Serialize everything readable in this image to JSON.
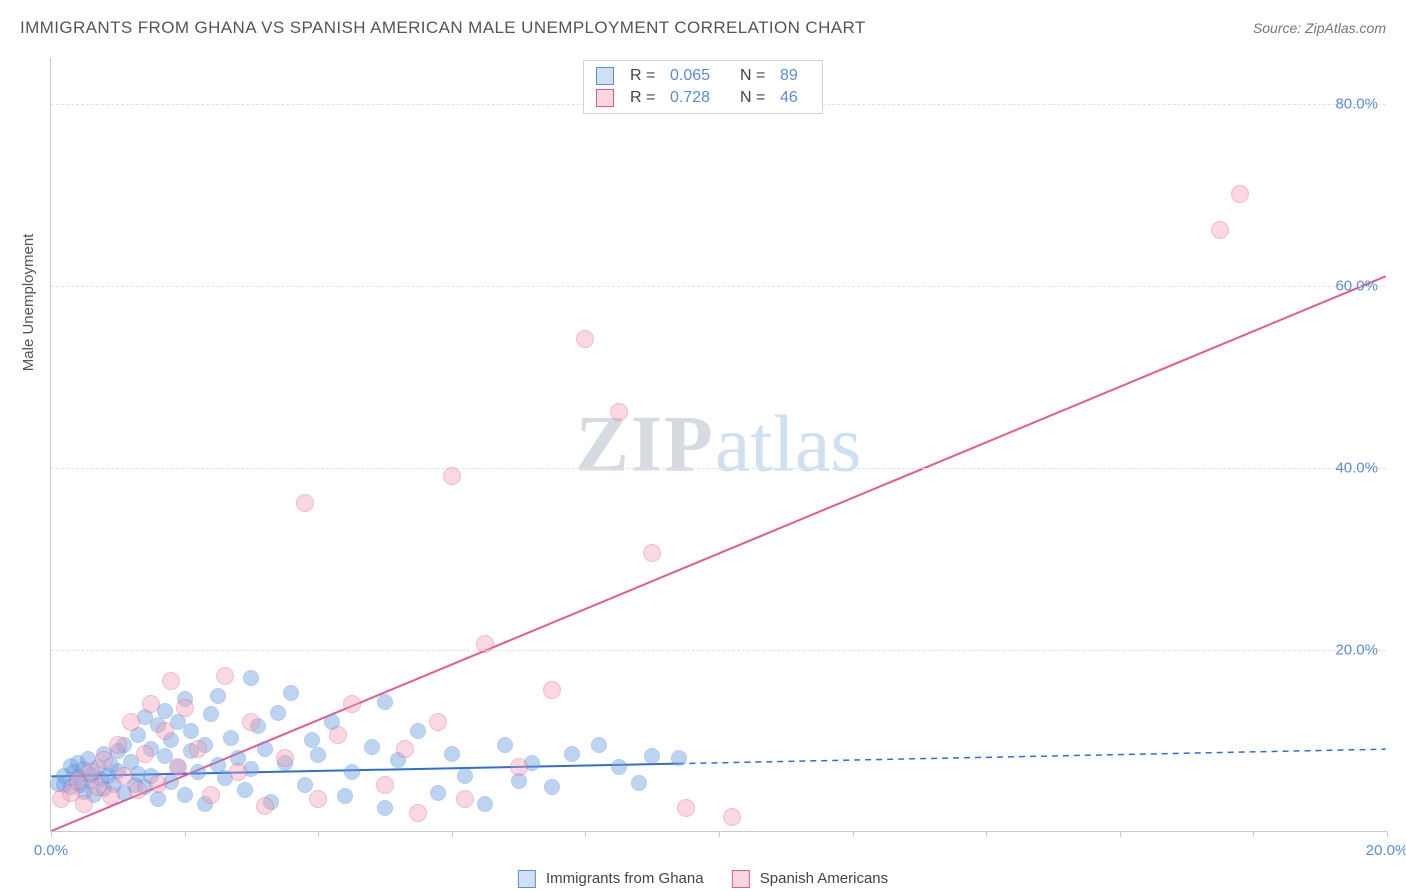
{
  "header": {
    "title": "IMMIGRANTS FROM GHANA VS SPANISH AMERICAN MALE UNEMPLOYMENT CORRELATION CHART",
    "source_prefix": "Source: ",
    "source": "ZipAtlas.com"
  },
  "watermark": {
    "zip": "ZIP",
    "atlas": "atlas"
  },
  "chart": {
    "type": "scatter",
    "y_axis_title": "Male Unemployment",
    "background_color": "#ffffff",
    "grid_color": "#e3e3e3",
    "axis_color": "#c9c9c9",
    "tick_label_color": "#5b8dd6",
    "tick_fontsize": 15,
    "x": {
      "min": 0.0,
      "max": 20.0,
      "ticks": [
        0.0,
        2.0,
        4.0,
        6.0,
        8.0,
        10.0,
        12.0,
        14.0,
        16.0,
        18.0,
        20.0
      ],
      "labels": [
        "0.0%",
        "",
        "",
        "",
        "",
        "",
        "",
        "",
        "",
        "",
        "20.0%"
      ]
    },
    "y": {
      "min": 0.0,
      "max": 85.0,
      "ticks": [
        20.0,
        40.0,
        60.0,
        80.0
      ],
      "labels": [
        "20.0%",
        "40.0%",
        "60.0%",
        "80.0%"
      ]
    },
    "series": [
      {
        "name": "Immigrants from Ghana",
        "label": "Immigrants from Ghana",
        "marker": "circle",
        "marker_radius_px": 8,
        "fill_color": "#6ea2df",
        "fill_opacity": 0.45,
        "stroke_color": "#5b8dd6",
        "stroke_width": 1.2,
        "trend": {
          "slope": 0.15,
          "intercept": 6.0,
          "x_solid_max": 9.4,
          "line_color": "#2f6fd0",
          "line_width": 2,
          "dash_color": "#2f6fd0"
        },
        "stats": {
          "R": "0.065",
          "N": "89"
        },
        "points": [
          [
            0.1,
            5.2
          ],
          [
            0.2,
            6.0
          ],
          [
            0.2,
            5.0
          ],
          [
            0.3,
            7.1
          ],
          [
            0.3,
            4.8
          ],
          [
            0.35,
            6.5
          ],
          [
            0.4,
            5.9
          ],
          [
            0.4,
            7.5
          ],
          [
            0.45,
            5.0
          ],
          [
            0.5,
            6.8
          ],
          [
            0.5,
            4.3
          ],
          [
            0.55,
            7.9
          ],
          [
            0.6,
            5.5
          ],
          [
            0.6,
            6.2
          ],
          [
            0.65,
            4.0
          ],
          [
            0.7,
            7.0
          ],
          [
            0.75,
            5.7
          ],
          [
            0.8,
            8.5
          ],
          [
            0.8,
            4.6
          ],
          [
            0.85,
            6.0
          ],
          [
            0.9,
            7.3
          ],
          [
            0.95,
            5.1
          ],
          [
            1.0,
            8.8
          ],
          [
            1.0,
            6.6
          ],
          [
            1.1,
            4.2
          ],
          [
            1.1,
            9.4
          ],
          [
            1.2,
            7.6
          ],
          [
            1.25,
            5.0
          ],
          [
            1.3,
            10.5
          ],
          [
            1.3,
            6.3
          ],
          [
            1.4,
            12.5
          ],
          [
            1.4,
            4.8
          ],
          [
            1.5,
            9.0
          ],
          [
            1.5,
            6.0
          ],
          [
            1.6,
            11.6
          ],
          [
            1.6,
            3.5
          ],
          [
            1.7,
            8.2
          ],
          [
            1.7,
            13.2
          ],
          [
            1.8,
            5.4
          ],
          [
            1.8,
            10.0
          ],
          [
            1.9,
            7.0
          ],
          [
            1.9,
            12.0
          ],
          [
            2.0,
            14.5
          ],
          [
            2.0,
            4.0
          ],
          [
            2.1,
            8.8
          ],
          [
            2.1,
            11.0
          ],
          [
            2.2,
            6.5
          ],
          [
            2.3,
            9.5
          ],
          [
            2.3,
            3.0
          ],
          [
            2.4,
            12.8
          ],
          [
            2.5,
            7.2
          ],
          [
            2.5,
            14.8
          ],
          [
            2.6,
            5.8
          ],
          [
            2.7,
            10.2
          ],
          [
            2.8,
            8.0
          ],
          [
            2.9,
            4.5
          ],
          [
            3.0,
            16.8
          ],
          [
            3.0,
            6.8
          ],
          [
            3.1,
            11.5
          ],
          [
            3.2,
            9.0
          ],
          [
            3.3,
            3.2
          ],
          [
            3.4,
            13.0
          ],
          [
            3.5,
            7.5
          ],
          [
            3.6,
            15.2
          ],
          [
            3.8,
            5.0
          ],
          [
            3.9,
            10.0
          ],
          [
            4.0,
            8.3
          ],
          [
            4.2,
            12.0
          ],
          [
            4.4,
            3.8
          ],
          [
            4.5,
            6.5
          ],
          [
            4.8,
            9.2
          ],
          [
            5.0,
            14.2
          ],
          [
            5.0,
            2.5
          ],
          [
            5.2,
            7.8
          ],
          [
            5.5,
            11.0
          ],
          [
            5.8,
            4.2
          ],
          [
            6.0,
            8.5
          ],
          [
            6.2,
            6.0
          ],
          [
            6.5,
            3.0
          ],
          [
            6.8,
            9.5
          ],
          [
            7.0,
            5.5
          ],
          [
            7.2,
            7.5
          ],
          [
            7.5,
            4.8
          ],
          [
            7.8,
            8.5
          ],
          [
            8.2,
            9.5
          ],
          [
            8.5,
            7.0
          ],
          [
            8.8,
            5.3
          ],
          [
            9.0,
            8.2
          ],
          [
            9.4,
            8.0
          ]
        ]
      },
      {
        "name": "Spanish Americans",
        "label": "Spanish Americans",
        "marker": "circle",
        "marker_radius_px": 9,
        "fill_color": "#f29fb8",
        "fill_opacity": 0.4,
        "stroke_color": "#e65a8a",
        "stroke_width": 1.2,
        "trend": {
          "slope": 3.05,
          "intercept": 0.0,
          "x_solid_max": 20.0,
          "line_color": "#e75a8f",
          "line_width": 2
        },
        "stats": {
          "R": "0.728",
          "N": "46"
        },
        "points": [
          [
            0.15,
            3.5
          ],
          [
            0.3,
            4.2
          ],
          [
            0.4,
            5.5
          ],
          [
            0.5,
            3.0
          ],
          [
            0.6,
            6.5
          ],
          [
            0.7,
            4.8
          ],
          [
            0.8,
            7.8
          ],
          [
            0.9,
            3.8
          ],
          [
            1.0,
            9.5
          ],
          [
            1.1,
            6.0
          ],
          [
            1.2,
            12.0
          ],
          [
            1.3,
            4.5
          ],
          [
            1.4,
            8.5
          ],
          [
            1.5,
            14.0
          ],
          [
            1.6,
            5.2
          ],
          [
            1.7,
            11.0
          ],
          [
            1.8,
            16.5
          ],
          [
            1.9,
            7.0
          ],
          [
            2.0,
            13.5
          ],
          [
            2.2,
            9.0
          ],
          [
            2.4,
            4.0
          ],
          [
            2.6,
            17.0
          ],
          [
            2.8,
            6.5
          ],
          [
            3.0,
            12.0
          ],
          [
            3.2,
            2.8
          ],
          [
            3.5,
            8.0
          ],
          [
            3.8,
            36.0
          ],
          [
            4.0,
            3.5
          ],
          [
            4.3,
            10.5
          ],
          [
            4.5,
            14.0
          ],
          [
            5.0,
            5.0
          ],
          [
            5.3,
            9.0
          ],
          [
            5.5,
            2.0
          ],
          [
            5.8,
            12.0
          ],
          [
            6.0,
            39.0
          ],
          [
            6.2,
            3.5
          ],
          [
            6.5,
            20.5
          ],
          [
            7.0,
            7.0
          ],
          [
            7.5,
            15.5
          ],
          [
            8.0,
            54.0
          ],
          [
            8.5,
            46.0
          ],
          [
            9.0,
            30.5
          ],
          [
            9.5,
            2.5
          ],
          [
            10.2,
            1.5
          ],
          [
            17.5,
            66.0
          ],
          [
            17.8,
            70.0
          ]
        ]
      }
    ],
    "bottom_legend": {
      "swatch_border_colors": [
        "#5b8dd6",
        "#e65a8a"
      ],
      "swatch_fill_colors": [
        "#cfe0f5",
        "#f9d6e2"
      ]
    },
    "stat_box": {
      "border_color": "#d4d4d4",
      "labels": {
        "R": "R =",
        "N": "N ="
      }
    }
  }
}
